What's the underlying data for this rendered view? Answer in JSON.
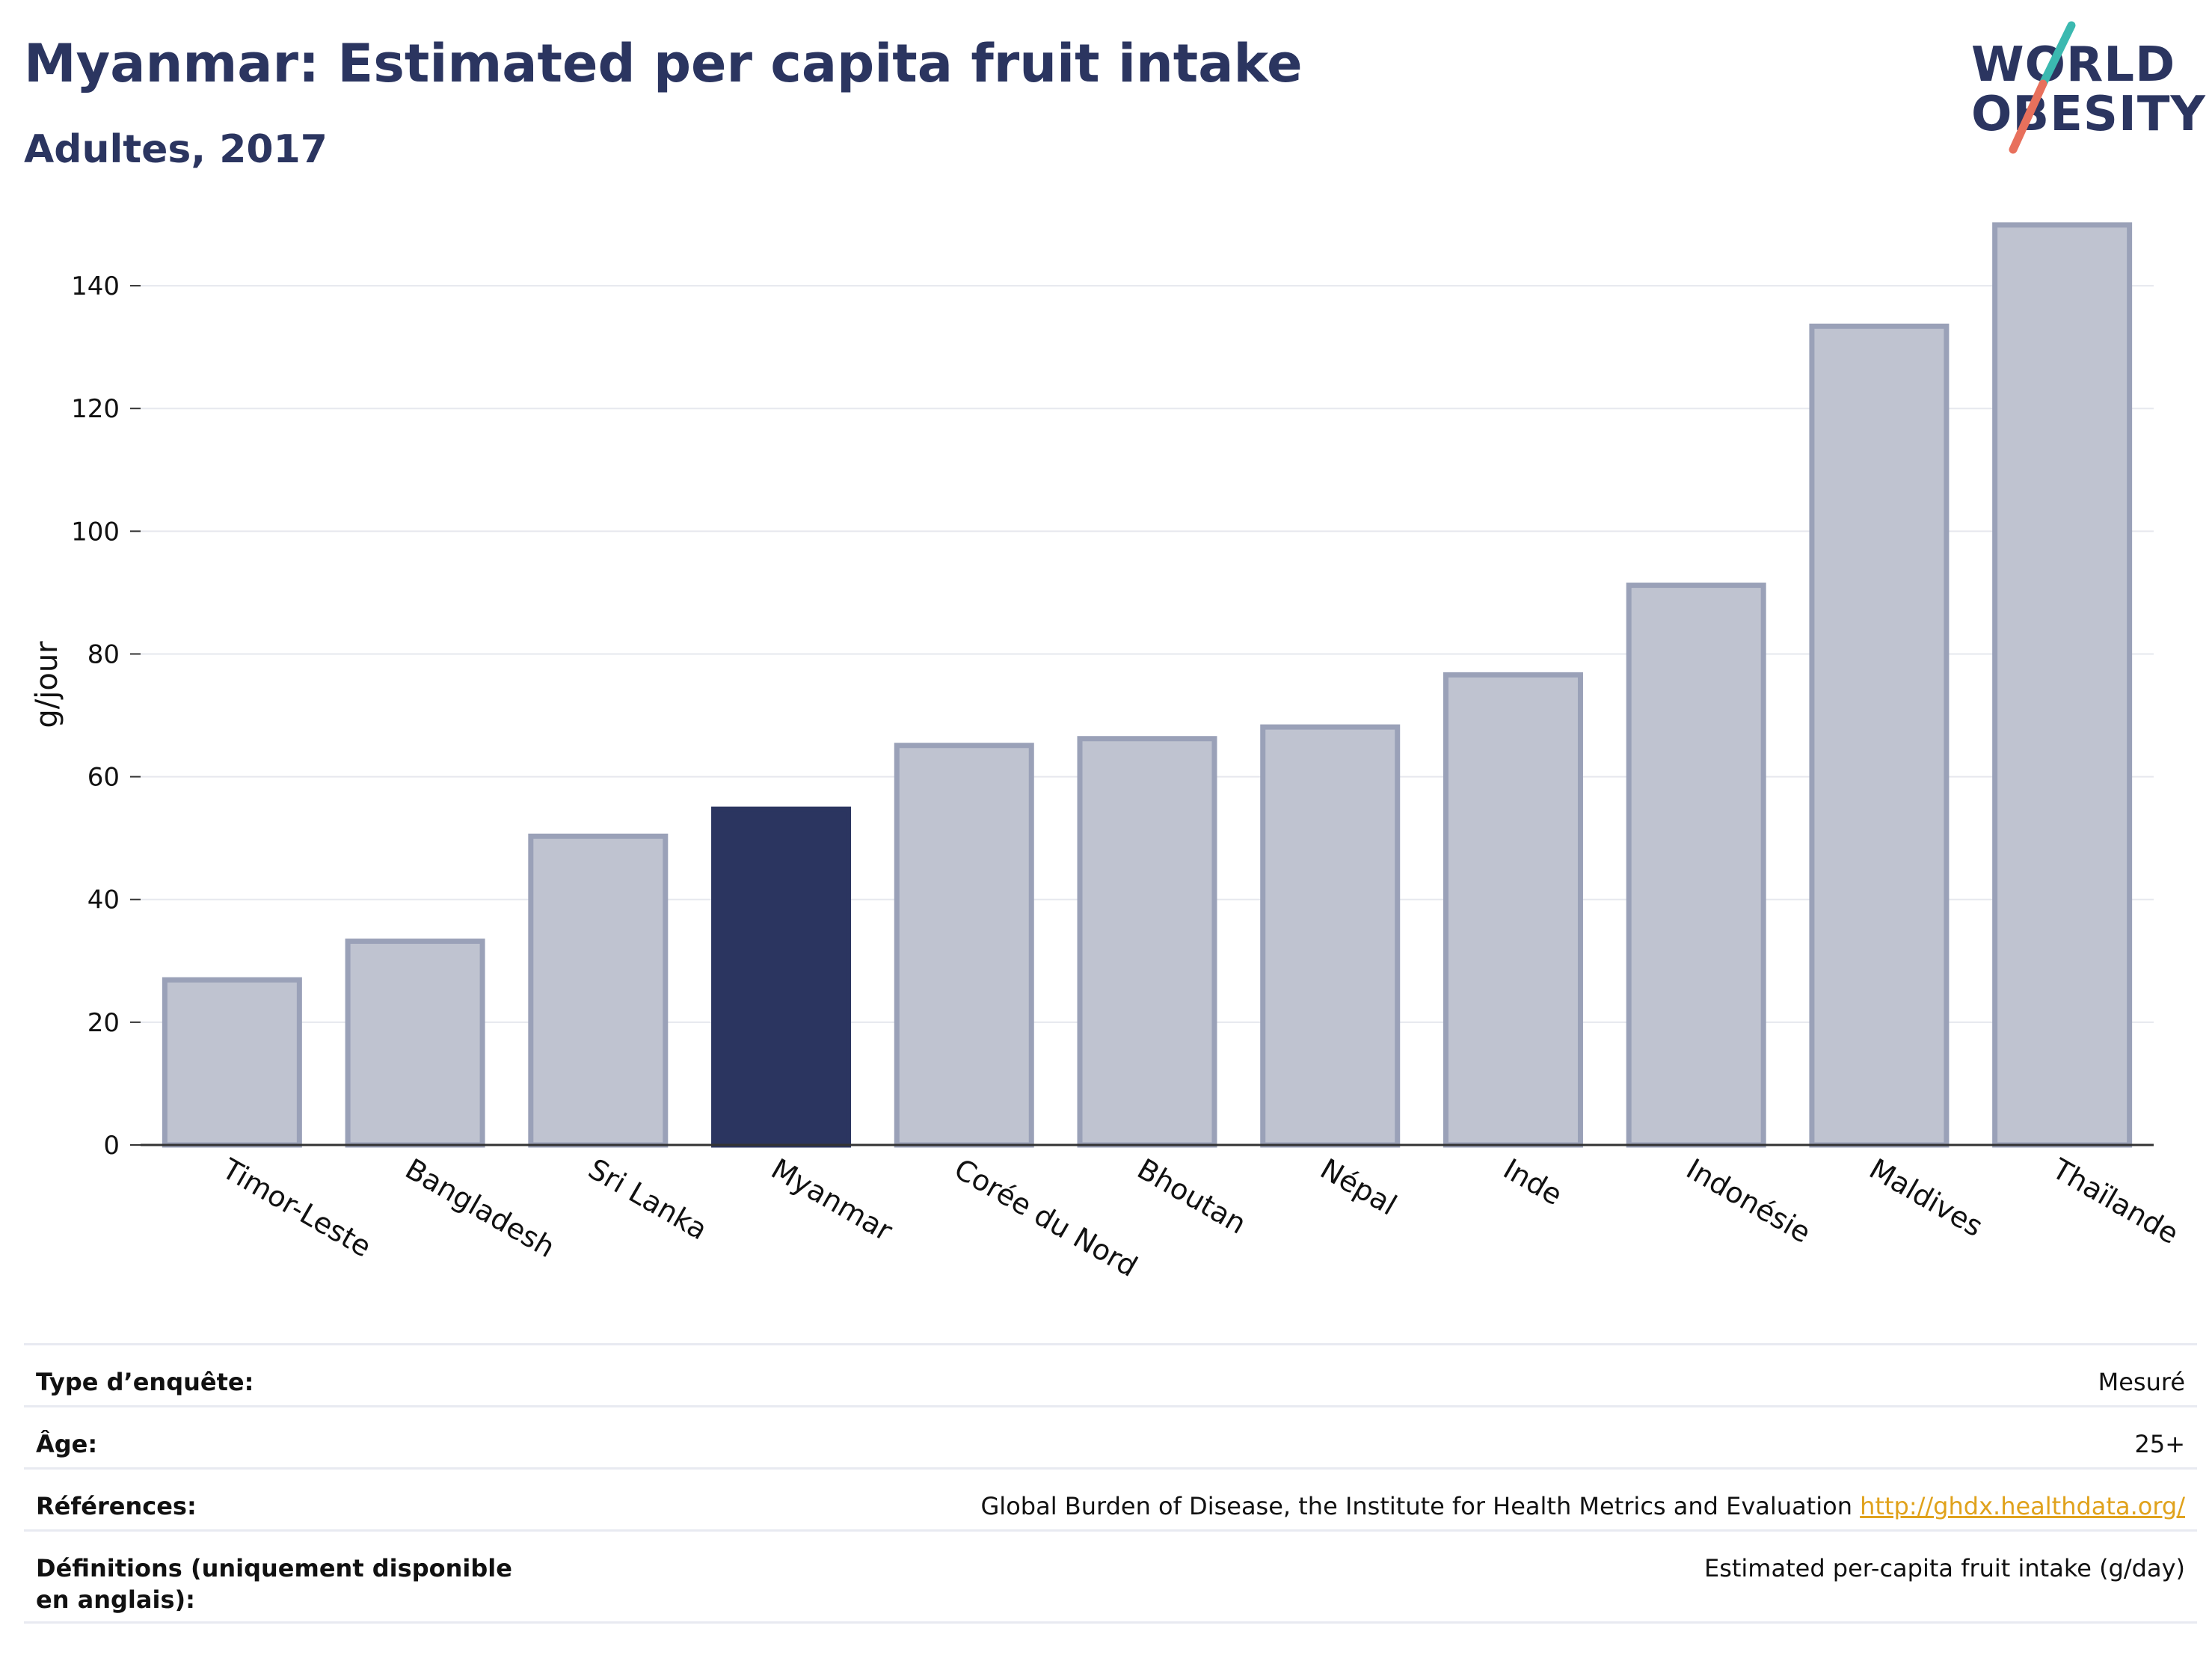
{
  "header": {
    "title": "Myanmar: Estimated per capita fruit intake",
    "subtitle": "Adultes, 2017"
  },
  "logo": {
    "line1": "WORLD",
    "line2": "OBESITY",
    "colors": {
      "text": "#2b3560",
      "slash_teal": "#3bb9b0",
      "slash_coral": "#e8705c"
    }
  },
  "chart_data": {
    "type": "bar",
    "title": "Myanmar: Estimated per capita fruit intake",
    "subtitle": "Adultes, 2017",
    "xlabel": "",
    "ylabel": "g/jour",
    "ylim": [
      0,
      150
    ],
    "yticks": [
      0,
      20,
      40,
      60,
      80,
      100,
      120,
      140
    ],
    "grid": true,
    "highlight": "Myanmar",
    "colors": {
      "bar": "#bfc3d0",
      "bar_edge": "#9aa1b8",
      "highlight": "#2b3560",
      "grid": "#e6e8ee"
    },
    "categories": [
      "Timor-Leste",
      "Bangladesh",
      "Sri Lanka",
      "Myanmar",
      "Corée du Nord",
      "Bhoutan",
      "Népal",
      "Inde",
      "Indonésie",
      "Maldives",
      "Thaïlande"
    ],
    "values": [
      26.9,
      33.2,
      50.3,
      54.7,
      65.1,
      66.2,
      68.1,
      76.6,
      91.2,
      133.4,
      149.9
    ]
  },
  "meta": {
    "survey_type": {
      "label": "Type d’enquête:",
      "value": "Mesuré"
    },
    "age": {
      "label": "Âge:",
      "value": "25+"
    },
    "references": {
      "label": "Références:",
      "value": "Global Burden of Disease, the Institute for Health Metrics and Evaluation",
      "link": "http://ghdx.healthdata.org/"
    },
    "definitions": {
      "label": "Définitions (uniquement disponible en anglais):",
      "value": "Estimated per-capita fruit intake (g/day)"
    }
  }
}
